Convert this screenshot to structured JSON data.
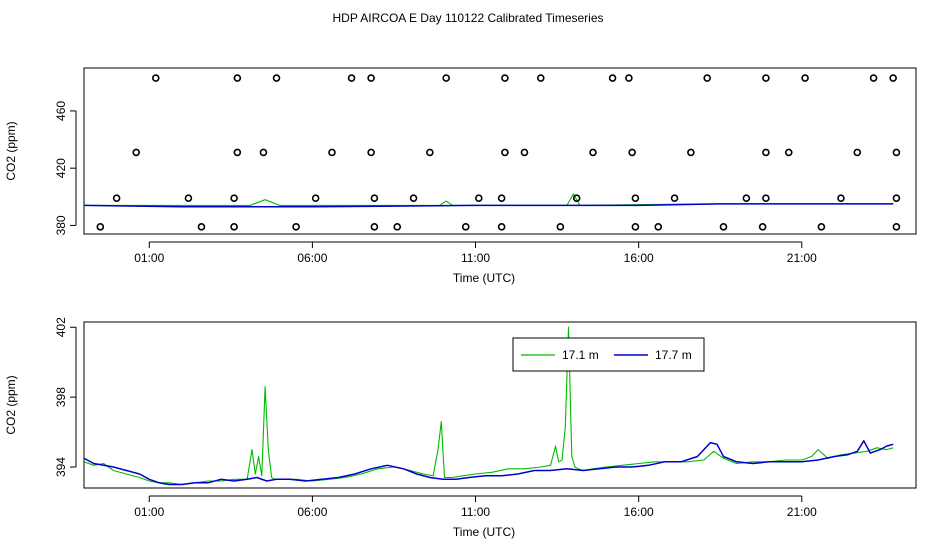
{
  "title": "HDP AIRCOA E  Day 110122  Calibrated Timeseries",
  "colors": {
    "series_17_1": "#00bb00",
    "series_17_7": "#0000cc",
    "axes": "#000000",
    "flags": "#000000"
  },
  "chart_data": [
    {
      "type": "scatter",
      "panel": "top",
      "xlabel": "Time (UTC)",
      "ylabel": "CO2 (ppm)",
      "xlim": [
        -1.0,
        24.5
      ],
      "ylim": [
        374,
        490
      ],
      "xticks": [
        1,
        6,
        11,
        16,
        21
      ],
      "xtick_labels": [
        "01:00",
        "06:00",
        "11:00",
        "16:00",
        "21:00"
      ],
      "yticks": [
        380,
        420,
        460
      ],
      "ytick_labels": [
        "380",
        "420",
        "460"
      ],
      "grid": false,
      "flag_points": [
        [
          1.2,
          483
        ],
        [
          3.7,
          483
        ],
        [
          4.9,
          483
        ],
        [
          7.2,
          483
        ],
        [
          7.8,
          483
        ],
        [
          10.1,
          483
        ],
        [
          11.9,
          483
        ],
        [
          13.0,
          483
        ],
        [
          15.2,
          483
        ],
        [
          15.7,
          483
        ],
        [
          18.1,
          483
        ],
        [
          19.9,
          483
        ],
        [
          21.1,
          483
        ],
        [
          23.2,
          483
        ],
        [
          23.8,
          483
        ],
        [
          0.6,
          431
        ],
        [
          3.7,
          431
        ],
        [
          4.5,
          431
        ],
        [
          6.6,
          431
        ],
        [
          7.8,
          431
        ],
        [
          9.6,
          431
        ],
        [
          11.9,
          431
        ],
        [
          12.5,
          431
        ],
        [
          14.6,
          431
        ],
        [
          15.8,
          431
        ],
        [
          17.6,
          431
        ],
        [
          19.9,
          431
        ],
        [
          20.6,
          431
        ],
        [
          22.7,
          431
        ],
        [
          23.9,
          431
        ],
        [
          0.0,
          399
        ],
        [
          2.2,
          399
        ],
        [
          3.6,
          399
        ],
        [
          6.1,
          399
        ],
        [
          7.9,
          399
        ],
        [
          9.1,
          399
        ],
        [
          11.1,
          399
        ],
        [
          11.8,
          399
        ],
        [
          14.1,
          399
        ],
        [
          15.9,
          399
        ],
        [
          17.1,
          399
        ],
        [
          19.3,
          399
        ],
        [
          19.9,
          399
        ],
        [
          22.2,
          399
        ],
        [
          23.9,
          399
        ],
        [
          -0.5,
          379
        ],
        [
          2.6,
          379
        ],
        [
          3.6,
          379
        ],
        [
          5.5,
          379
        ],
        [
          7.9,
          379
        ],
        [
          8.6,
          379
        ],
        [
          10.7,
          379
        ],
        [
          11.8,
          379
        ],
        [
          13.6,
          379
        ],
        [
          15.9,
          379
        ],
        [
          16.6,
          379
        ],
        [
          18.6,
          379
        ],
        [
          19.8,
          379
        ],
        [
          21.6,
          379
        ],
        [
          23.9,
          379
        ]
      ],
      "series": [
        {
          "name": "17.1 m",
          "x": [
            -1.0,
            4.1,
            4.55,
            5.0,
            9.9,
            10.1,
            10.3,
            13.8,
            14.0,
            14.2,
            18.0,
            23.8
          ],
          "values": [
            394,
            394,
            398,
            394,
            394,
            397,
            394,
            394,
            402,
            394,
            395,
            395
          ]
        },
        {
          "name": "17.7 m",
          "x": [
            -1.0,
            2.0,
            6.0,
            11.0,
            16.0,
            18.5,
            21.0,
            23.8
          ],
          "values": [
            394,
            393,
            393,
            394,
            394,
            395,
            395,
            395
          ]
        }
      ]
    },
    {
      "type": "line",
      "panel": "bottom",
      "xlabel": "Time (UTC)",
      "ylabel": "CO2 (ppm)",
      "xlim": [
        -1.0,
        24.5
      ],
      "ylim": [
        392.8,
        402.3
      ],
      "xticks": [
        1,
        6,
        11,
        16,
        21
      ],
      "xtick_labels": [
        "01:00",
        "06:00",
        "11:00",
        "16:00",
        "21:00"
      ],
      "yticks": [
        394,
        398,
        402
      ],
      "ytick_labels": [
        "394",
        "398",
        "402"
      ],
      "grid": false,
      "legend": "top-center",
      "series": [
        {
          "name": "17.1 m",
          "color": "#00bb00",
          "x": [
            -1.0,
            -0.7,
            -0.4,
            -0.1,
            0.3,
            0.7,
            1.0,
            1.3,
            1.6,
            2.0,
            2.4,
            2.8,
            3.2,
            3.6,
            4.0,
            4.15,
            4.25,
            4.35,
            4.45,
            4.55,
            4.65,
            4.75,
            4.85,
            5.0,
            5.5,
            6.0,
            6.5,
            7.0,
            7.5,
            8.0,
            8.5,
            9.0,
            9.4,
            9.7,
            9.85,
            9.95,
            10.05,
            10.15,
            10.3,
            10.6,
            11.0,
            11.5,
            12.0,
            12.5,
            13.0,
            13.3,
            13.45,
            13.55,
            13.65,
            13.75,
            13.85,
            13.95,
            14.05,
            14.15,
            14.3,
            14.6,
            15.0,
            15.5,
            16.0,
            16.5,
            17.0,
            17.5,
            18.0,
            18.3,
            18.6,
            19.0,
            19.5,
            20.0,
            20.5,
            21.0,
            21.3,
            21.5,
            21.8,
            22.2,
            22.6,
            23.0,
            23.3,
            23.6,
            23.8
          ],
          "values": [
            394.3,
            394.1,
            394.2,
            393.8,
            393.6,
            393.4,
            393.2,
            393.1,
            393.1,
            393.0,
            393.1,
            393.2,
            393.2,
            393.3,
            393.3,
            395.0,
            393.6,
            394.6,
            393.5,
            398.6,
            395.0,
            393.4,
            393.3,
            393.3,
            393.3,
            393.2,
            393.3,
            393.4,
            393.6,
            393.9,
            394.0,
            393.8,
            393.6,
            393.5,
            395.0,
            396.6,
            393.4,
            393.4,
            393.4,
            393.5,
            393.6,
            393.7,
            393.9,
            393.9,
            394.0,
            394.1,
            395.2,
            394.3,
            394.4,
            396.3,
            402.0,
            394.6,
            394.0,
            393.9,
            393.8,
            393.9,
            394.0,
            394.1,
            394.2,
            394.3,
            394.3,
            394.3,
            394.4,
            394.9,
            394.5,
            394.2,
            394.3,
            394.3,
            394.4,
            394.4,
            394.6,
            395.0,
            394.5,
            394.7,
            394.8,
            394.9,
            395.1,
            395.0,
            395.1
          ]
        },
        {
          "name": "17.7 m",
          "color": "#0000cc",
          "x": [
            -1.0,
            -0.7,
            -0.4,
            -0.1,
            0.3,
            0.7,
            1.0,
            1.3,
            1.6,
            2.0,
            2.4,
            2.8,
            3.2,
            3.6,
            4.0,
            4.3,
            4.6,
            4.9,
            5.3,
            5.8,
            6.3,
            6.8,
            7.3,
            7.8,
            8.3,
            8.8,
            9.2,
            9.6,
            10.0,
            10.4,
            10.8,
            11.3,
            11.8,
            12.3,
            12.8,
            13.3,
            13.8,
            14.3,
            14.8,
            15.3,
            15.8,
            16.3,
            16.8,
            17.3,
            17.8,
            18.2,
            18.4,
            18.6,
            19.0,
            19.5,
            20.0,
            20.5,
            21.0,
            21.5,
            22.0,
            22.4,
            22.7,
            22.9,
            23.1,
            23.4,
            23.6,
            23.8
          ],
          "values": [
            394.5,
            394.2,
            394.1,
            394.0,
            393.8,
            393.6,
            393.3,
            393.1,
            393.0,
            393.0,
            393.1,
            393.1,
            393.3,
            393.2,
            393.3,
            393.4,
            393.2,
            393.3,
            393.3,
            393.2,
            393.3,
            393.4,
            393.6,
            393.9,
            394.1,
            393.9,
            393.6,
            393.4,
            393.3,
            393.3,
            393.4,
            393.5,
            393.5,
            393.6,
            393.8,
            393.8,
            393.9,
            393.8,
            393.9,
            394.0,
            394.0,
            394.1,
            394.3,
            394.3,
            394.6,
            395.4,
            395.3,
            394.6,
            394.3,
            394.2,
            394.3,
            394.3,
            394.3,
            394.4,
            394.6,
            394.7,
            394.9,
            395.5,
            394.8,
            395.0,
            395.2,
            395.3
          ]
        }
      ]
    }
  ]
}
